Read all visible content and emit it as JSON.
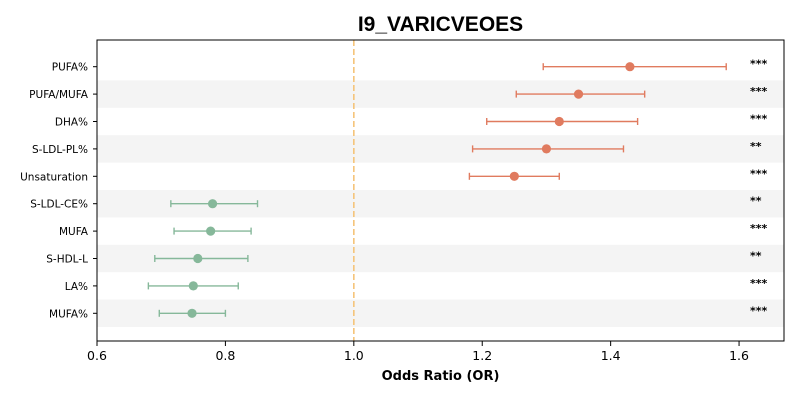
{
  "chart_data": {
    "type": "forest",
    "title": "I9_VARICVEOES",
    "xlabel": "Odds Ratio (OR)",
    "ylabel": "",
    "xlim": [
      0.6,
      1.67
    ],
    "xticks": [
      "0.6",
      "0.8",
      "1.0",
      "1.2",
      "1.4",
      "1.6"
    ],
    "reference_line": 1.0,
    "grid": false,
    "row_banding": true,
    "colors": {
      "positive": "#e07b5f",
      "negative": "#86b89a",
      "reference": "#f5c47a",
      "band": "#f4f4f4"
    },
    "categories": [
      "PUFA%",
      "PUFA/MUFA",
      "DHA%",
      "S-LDL-PL%",
      "Unsaturation",
      "S-LDL-CE%",
      "MUFA",
      "S-HDL-L",
      "LA%",
      "MUFA%"
    ],
    "or": [
      1.43,
      1.35,
      1.32,
      1.3,
      1.25,
      0.78,
      0.777,
      0.757,
      0.75,
      0.748
    ],
    "ci_low": [
      1.295,
      1.253,
      1.207,
      1.185,
      1.18,
      0.715,
      0.72,
      0.69,
      0.68,
      0.697
    ],
    "ci_high": [
      1.58,
      1.453,
      1.442,
      1.42,
      1.32,
      0.85,
      0.84,
      0.835,
      0.82,
      0.8
    ],
    "significance": [
      "***",
      "***",
      "***",
      "**",
      "***",
      "**",
      "***",
      "**",
      "***",
      "***"
    ]
  }
}
